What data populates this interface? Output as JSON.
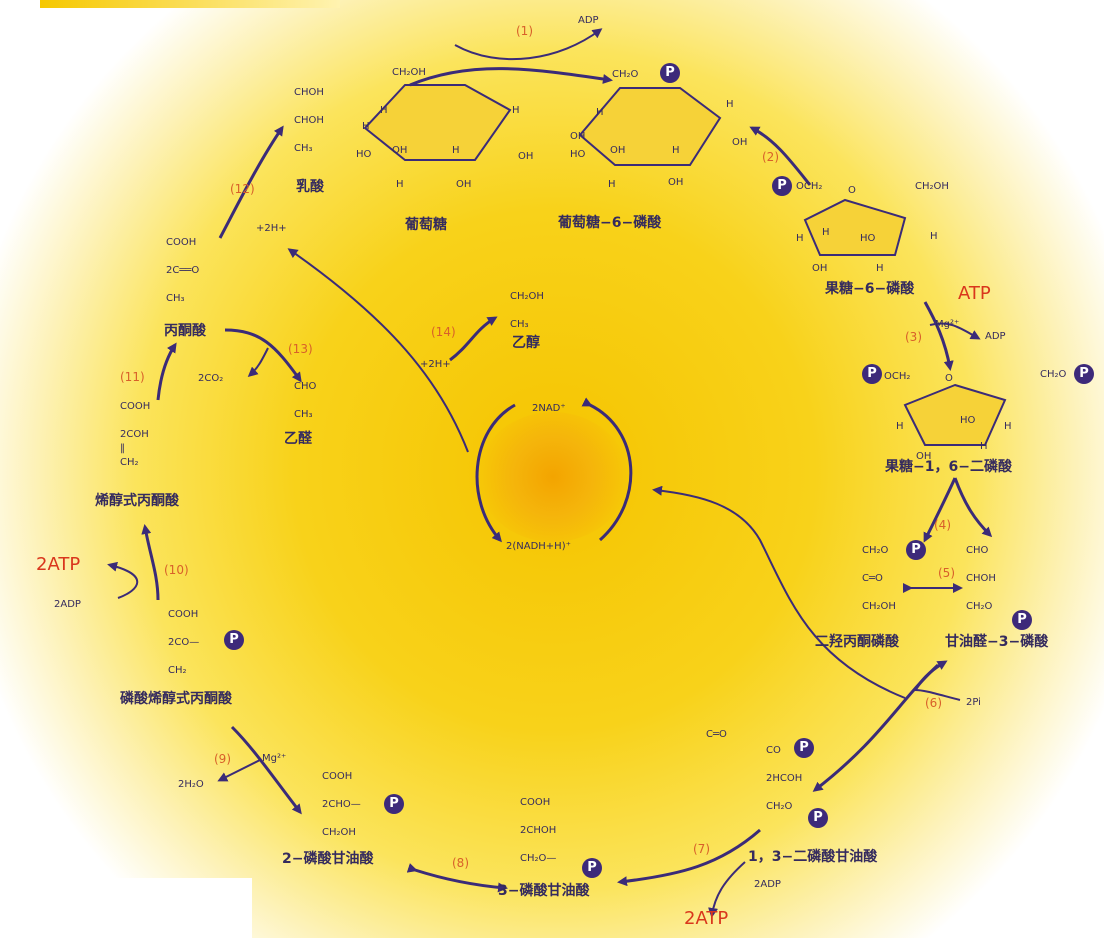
{
  "steps": {
    "s1": "(1)",
    "s2": "(2)",
    "s3": "(3)",
    "s4": "(4)",
    "s5": "(5)",
    "s6": "(6)",
    "s7": "(7)",
    "s8": "(8)",
    "s9": "(9)",
    "s10": "(10)",
    "s11": "(11)",
    "s12": "(12)",
    "s13": "(13)",
    "s14": "(14)"
  },
  "cofactors": {
    "adp1": "ADP",
    "atp3": "ATP",
    "mg3": "Mg²⁺",
    "adp3": "ADP",
    "pi6": "2Pi",
    "adp7": "2ADP",
    "atp7": "2ATP",
    "mg9": "Mg²⁺",
    "h2o9": "2H₂O",
    "atp10": "2ATP",
    "adp10": "2ADP",
    "co2_13": "2CO₂",
    "h14": "+2H+",
    "h12": "+2H+",
    "nad": "2NAD⁺",
    "nadh": "2(NADH+H)⁺"
  },
  "compounds": {
    "glucose": "葡萄糖",
    "g6p": "葡萄糖−6−磷酸",
    "f6p": "果糖−6−磷酸",
    "fbp": "果糖−1，6−二磷酸",
    "dhap": "二羟丙酮磷酸",
    "g3p": "甘油醛−3−磷酸",
    "bpg": "1，3−二磷酸甘油酸",
    "pg3": "3−磷酸甘油酸",
    "pg2": "2−磷酸甘油酸",
    "pep": "磷酸烯醇式丙酮酸",
    "enol": "烯醇式丙酮酸",
    "pyruvate": "丙酮酸",
    "lactate": "乳酸",
    "acetaldehyde": "乙醛",
    "ethanol": "乙醇"
  },
  "formulas": {
    "glc_ch2oh": "CH₂OH",
    "glc_h1": "H",
    "glc_h2": "H",
    "glc_h3": "H",
    "glc_oh1": "HO",
    "glc_oh2": "OH",
    "glc_oh3": "OH",
    "glc_h4": "H",
    "glc_oh4": "OH",
    "glc_h5": "H",
    "g6p_ch2o": "CH₂O",
    "g6p_h1": "H",
    "g6p_h2": "H",
    "g6p_oh1": "HO",
    "g6p_oh2": "OH",
    "g6p_oh3": "OH",
    "g6p_h4": "H",
    "g6p_oh4": "OH",
    "g6p_h5": "H",
    "g6p_oh5": "OH",
    "f6p_och2": "OCH₂",
    "f6p_o": "O",
    "f6p_ch2oh": "CH₂OH",
    "f6p_h1": "H",
    "f6p_ho": "HO",
    "f6p_h2": "H",
    "f6p_oh": "OH",
    "f6p_h3": "H",
    "f6p_h4": "H",
    "fbp_och2": "OCH₂",
    "fbp_o": "O",
    "fbp_ch2o": "CH₂O",
    "fbp_h1": "H",
    "fbp_ho": "HO",
    "fbp_h2": "H",
    "fbp_oh": "OH",
    "fbp_h3": "H",
    "dhap": "CH₂O\n\nC═O\n\nCH₂OH",
    "g3p": "CHO\n\nCHOH\n\nCH₂O",
    "bpg_co": "C═O",
    "bpg": "CO\n\n2HCOH\n\nCH₂O",
    "pg3": "COOH\n\n2CHOH\n\nCH₂O—",
    "pg2": "COOH\n\n2CHO—\n\nCH₂OH",
    "pep": "COOH\n\n2CO—\n\nCH₂",
    "enol": "COOH\n\n2COH\n‖\nCH₂",
    "pyr": "COOH\n\n2C══O\n\nCH₃",
    "lac": "CHOH\n\nCHOH\n\nCH₃",
    "acetald": "CHO\n\nCH₃",
    "ethanol": "CH₂OH\n\nCH₃"
  },
  "p_label": "P",
  "colors": {
    "arrow": "#3b2b78",
    "step": "#d8602a",
    "atp": "#d9361c",
    "ring": "#f6d238"
  }
}
